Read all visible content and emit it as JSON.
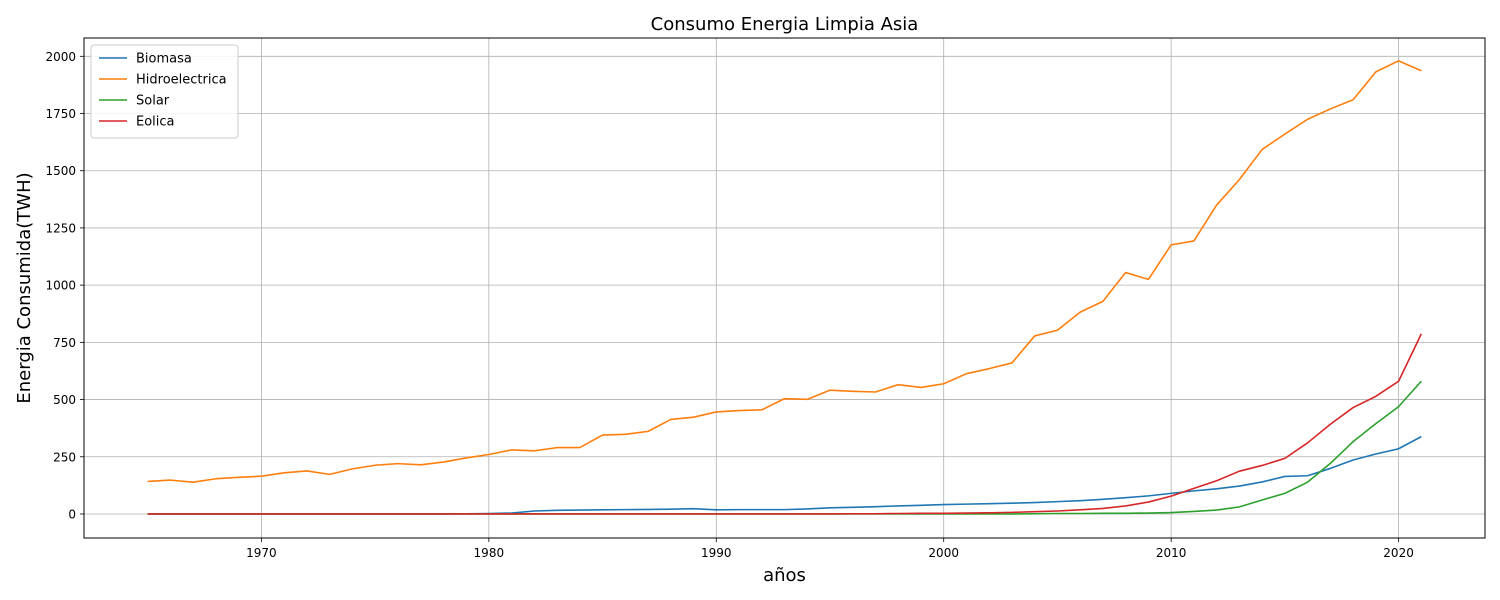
{
  "chart_data": {
    "type": "line",
    "title": "Consumo Energia Limpia Asia",
    "xlabel": "años",
    "ylabel": "Energia Consumida(TWH)",
    "xlim": [
      1962.2,
      2023.8
    ],
    "ylim": [
      -105,
      2080
    ],
    "xticks": [
      1970,
      1980,
      1990,
      2000,
      2010,
      2020
    ],
    "yticks": [
      0,
      250,
      500,
      750,
      1000,
      1250,
      1500,
      1750,
      2000
    ],
    "grid": true,
    "legend_position": "upper-left",
    "x": [
      1965,
      1966,
      1967,
      1968,
      1969,
      1970,
      1971,
      1972,
      1973,
      1974,
      1975,
      1976,
      1977,
      1978,
      1979,
      1980,
      1981,
      1982,
      1983,
      1984,
      1985,
      1986,
      1987,
      1988,
      1989,
      1990,
      1991,
      1992,
      1993,
      1994,
      1995,
      1996,
      1997,
      1998,
      1999,
      2000,
      2001,
      2002,
      2003,
      2004,
      2005,
      2006,
      2007,
      2008,
      2009,
      2010,
      2011,
      2012,
      2013,
      2014,
      2015,
      2016,
      2017,
      2018,
      2019,
      2020,
      2021
    ],
    "series": [
      {
        "name": "Biomasa",
        "color": "#1f77b4",
        "values": [
          0,
          0,
          0,
          0,
          0,
          0,
          0,
          0,
          0,
          0,
          0,
          0,
          0,
          0,
          1,
          2,
          4,
          13,
          16,
          17,
          18,
          19,
          20,
          21,
          23,
          18,
          19,
          19,
          19,
          22,
          27,
          29,
          32,
          35,
          38,
          41,
          43,
          45,
          47,
          50,
          54,
          58,
          64,
          71,
          79,
          90,
          101,
          110,
          122,
          140,
          164,
          167,
          199,
          236,
          262,
          285,
          338
        ]
      },
      {
        "name": "Hidroelectrica",
        "color": "#ff7f0e",
        "values": [
          142,
          148,
          139,
          154,
          160,
          165,
          180,
          188,
          173,
          197,
          213,
          220,
          215,
          227,
          245,
          260,
          280,
          276,
          290,
          290,
          345,
          348,
          361,
          413,
          423,
          446,
          452,
          455,
          504,
          501,
          541,
          536,
          533,
          565,
          553,
          569,
          613,
          635,
          660,
          778,
          803,
          882,
          929,
          1055,
          1025,
          1176,
          1193,
          1350,
          1461,
          1593,
          1660,
          1725,
          1770,
          1810,
          1932,
          1980,
          1937
        ]
      },
      {
        "name": "Solar",
        "color": "#2ca02c",
        "values": [
          0,
          0,
          0,
          0,
          0,
          0,
          0,
          0,
          0,
          0,
          0,
          0,
          0,
          0,
          0,
          0,
          0,
          0,
          0,
          0,
          0,
          0,
          0,
          0,
          0,
          0,
          0,
          0,
          0,
          0,
          0,
          0,
          0,
          0,
          0,
          0,
          0,
          0,
          0,
          1,
          2,
          2,
          3,
          3,
          4,
          6,
          11,
          17,
          31,
          61,
          90,
          139,
          221,
          316,
          395,
          469,
          580
        ]
      },
      {
        "name": "Eolica",
        "color": "#d62728",
        "values": [
          0,
          0,
          0,
          0,
          0,
          0,
          0,
          0,
          0,
          0,
          0,
          0,
          0,
          0,
          0,
          0,
          0,
          0,
          0,
          0,
          0,
          0,
          0,
          0,
          0,
          0,
          0,
          0,
          0,
          0,
          0,
          1,
          1,
          2,
          3,
          3,
          4,
          5,
          7,
          10,
          13,
          18,
          24,
          35,
          52,
          78,
          112,
          145,
          187,
          212,
          243,
          311,
          392,
          465,
          514,
          580,
          787
        ]
      }
    ]
  }
}
